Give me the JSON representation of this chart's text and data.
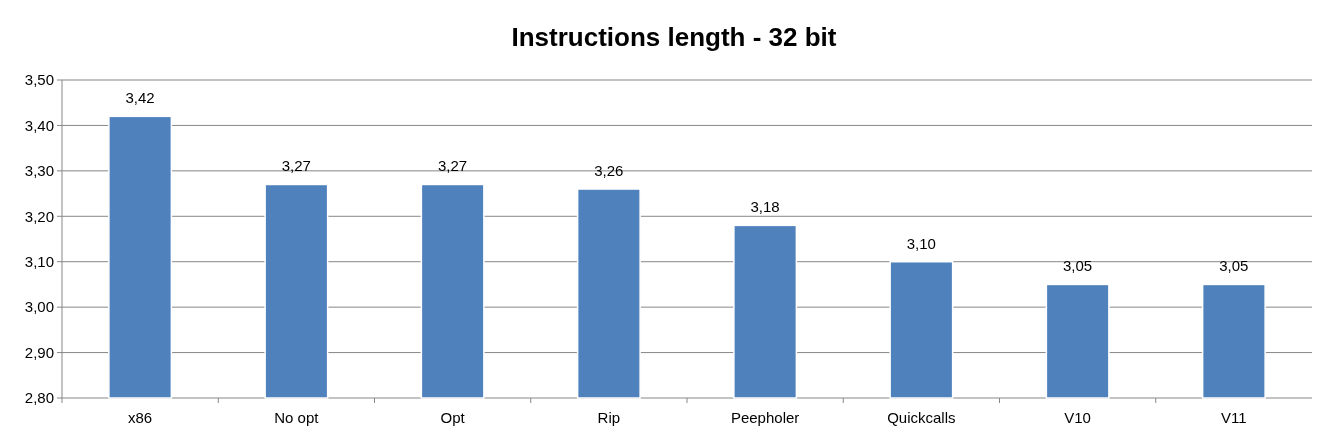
{
  "chart_data": {
    "type": "bar",
    "title": "Instructions length - 32 bit",
    "categories": [
      "x86",
      "No opt",
      "Opt",
      "Rip",
      "Peepholer",
      "Quickcalls",
      "V10",
      "V11"
    ],
    "values": [
      3.42,
      3.27,
      3.27,
      3.26,
      3.18,
      3.1,
      3.05,
      3.05
    ],
    "value_labels": [
      "3,42",
      "3,27",
      "3,27",
      "3,26",
      "3,18",
      "3,10",
      "3,05",
      "3,05"
    ],
    "color": "#4f81bd",
    "ylim": [
      2.8,
      3.5
    ],
    "yticks": [
      {
        "value": 2.8,
        "label": "2,80"
      },
      {
        "value": 2.9,
        "label": "2,90"
      },
      {
        "value": 3.0,
        "label": "3,00"
      },
      {
        "value": 3.1,
        "label": "3,10"
      },
      {
        "value": 3.2,
        "label": "3,20"
      },
      {
        "value": 3.3,
        "label": "3,30"
      },
      {
        "value": 3.4,
        "label": "3,40"
      },
      {
        "value": 3.5,
        "label": "3,50"
      }
    ],
    "grid": "y"
  }
}
